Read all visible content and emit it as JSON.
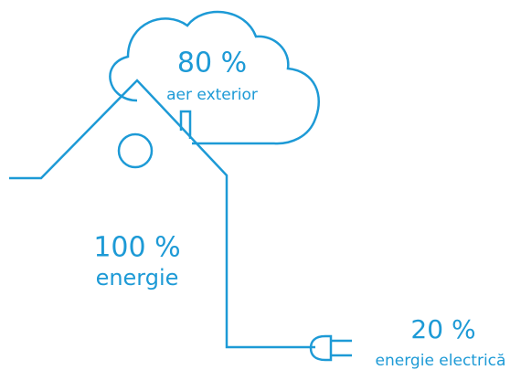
{
  "cloud": {
    "value": "80 %",
    "label": "aer exterior"
  },
  "house": {
    "value": "100 %",
    "label": "energie"
  },
  "plug": {
    "value": "20 %",
    "label": "energie electrică"
  }
}
